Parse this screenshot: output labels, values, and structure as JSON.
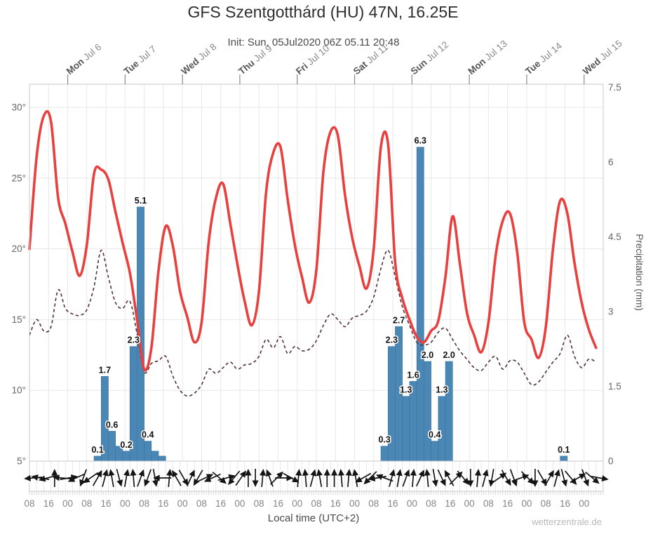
{
  "header": {
    "title": "GFS Szentgotthárd (HU) 47N, 16.25E",
    "subtitle": "Init: Sun, 05Jul2020 06Z 05.11 20:48",
    "watermark": "wetterzentrale.de"
  },
  "axes": {
    "left": {
      "tick_labels": [
        "30°",
        "25°",
        "20°",
        "15°",
        "10°",
        "5°"
      ],
      "tick_values": [
        30,
        25,
        20,
        15,
        10,
        5
      ]
    },
    "right": {
      "label": "Precipitation (mm)",
      "tick_labels": [
        "7.5",
        "6",
        "4.5",
        "3",
        "1.5",
        "0"
      ],
      "tick_values": [
        7.5,
        6,
        4.5,
        3,
        1.5,
        0
      ]
    },
    "bottom": {
      "label": "Local time (UTC+2)",
      "hour_labels": [
        "08",
        "16",
        "00",
        "08",
        "16",
        "00",
        "08",
        "16",
        "00",
        "08",
        "16",
        "00",
        "08",
        "16",
        "00",
        "08",
        "16",
        "00",
        "08",
        "16",
        "00",
        "08",
        "16",
        "00",
        "08",
        "16",
        "00",
        "08",
        "16",
        "00"
      ],
      "hour_label_step_hours": 8
    },
    "top_days": [
      {
        "weekday": "Mon",
        "date": "Jul 6"
      },
      {
        "weekday": "Tue",
        "date": "Jul 7"
      },
      {
        "weekday": "Wed",
        "date": "Jul 8"
      },
      {
        "weekday": "Thu",
        "date": "Jul 9"
      },
      {
        "weekday": "Fri",
        "date": "Jul 10"
      },
      {
        "weekday": "Sat",
        "date": "Jul 11"
      },
      {
        "weekday": "Sun",
        "date": "Jul 12"
      },
      {
        "weekday": "Mon",
        "date": "Jul 13"
      },
      {
        "weekday": "Tue",
        "date": "Jul 14"
      },
      {
        "weekday": "Wed",
        "date": "Jul 15"
      }
    ]
  },
  "chart_data": {
    "type": "line+bar",
    "title": "GFS Szentgotthárd (HU) 47N, 16.25E",
    "x_unit": "hours since Sun 05 Jul 2020 08:00 local time (UTC+2)",
    "x_range_hours": [
      0,
      240
    ],
    "x_step_hours": 3,
    "first_day_tick_hour": 16,
    "day_tick_spacing_hours": 24,
    "temp_axis": {
      "ticks": [
        5,
        10,
        15,
        20,
        25,
        30
      ],
      "unit": "°C",
      "min": 5,
      "max": 31.6
    },
    "precip_axis": {
      "ticks": [
        0,
        1.5,
        3,
        4.5,
        6,
        7.5
      ],
      "unit": "mm",
      "min": 0,
      "max": 7.5
    },
    "grid": true,
    "legend": "none",
    "series": [
      {
        "name": "temperature_2m",
        "style": "solid",
        "color": "#e8403e",
        "width": 3.6,
        "values": [
          20.0,
          26.5,
          29.4,
          29.0,
          23.6,
          21.8,
          19.8,
          18.1,
          20.3,
          25.3,
          25.6,
          24.9,
          22.6,
          20.4,
          18.3,
          15.0,
          11.5,
          13.0,
          18.5,
          21.6,
          20.2,
          17.0,
          15.2,
          13.4,
          14.8,
          20.5,
          23.6,
          24.6,
          21.8,
          18.9,
          16.3,
          14.6,
          17.0,
          24.0,
          26.8,
          27.2,
          23.5,
          20.3,
          18.0,
          16.2,
          18.5,
          25.5,
          28.3,
          28.0,
          23.8,
          20.8,
          18.8,
          17.2,
          20.0,
          27.2,
          27.4,
          19.0,
          16.5,
          15.0,
          13.8,
          13.4,
          14.2,
          14.9,
          18.0,
          22.3,
          19.0,
          15.5,
          13.9,
          12.7,
          14.8,
          19.5,
          22.0,
          22.5,
          19.8,
          14.8,
          13.6,
          12.3,
          14.5,
          20.0,
          23.4,
          22.5,
          19.0,
          16.2,
          14.3,
          13.0
        ]
      },
      {
        "name": "dewpoint_2m",
        "style": "dashed",
        "color": "#533138",
        "width": 1.6,
        "values": [
          13.9,
          15.0,
          14.2,
          14.5,
          17.1,
          15.8,
          15.4,
          15.3,
          15.7,
          17.3,
          19.9,
          18.0,
          16.2,
          15.8,
          16.3,
          14.0,
          11.3,
          11.9,
          12.1,
          12.4,
          11.0,
          10.0,
          9.6,
          9.8,
          10.4,
          11.5,
          11.2,
          11.6,
          12.0,
          11.5,
          11.8,
          11.9,
          12.4,
          13.6,
          13.0,
          13.8,
          12.6,
          13.1,
          12.8,
          12.9,
          13.5,
          14.6,
          15.4,
          15.0,
          14.5,
          15.1,
          15.3,
          15.6,
          16.6,
          18.6,
          19.9,
          18.0,
          15.9,
          14.6,
          13.4,
          13.2,
          13.4,
          14.1,
          14.4,
          13.6,
          12.8,
          12.2,
          11.6,
          11.4,
          12.0,
          12.4,
          11.5,
          12.1,
          12.0,
          11.2,
          10.4,
          10.6,
          11.3,
          12.0,
          12.6,
          13.9,
          12.4,
          11.6,
          12.2,
          12.0
        ]
      }
    ],
    "precipitation_bars": [
      {
        "start_hour": 27,
        "mm": 0.1,
        "label": "0.1"
      },
      {
        "start_hour": 30,
        "mm": 1.7,
        "label": "1.7"
      },
      {
        "start_hour": 33,
        "mm": 0.6,
        "label": "0.6"
      },
      {
        "start_hour": 36,
        "mm": 0.3,
        "label": null
      },
      {
        "start_hour": 39,
        "mm": 0.2,
        "label": "0.2"
      },
      {
        "start_hour": 42,
        "mm": 2.3,
        "label": "2.3"
      },
      {
        "start_hour": 45,
        "mm": 5.1,
        "label": "5.1"
      },
      {
        "start_hour": 48,
        "mm": 0.4,
        "label": "0.4"
      },
      {
        "start_hour": 51,
        "mm": 0.2,
        "label": null
      },
      {
        "start_hour": 54,
        "mm": 0.1,
        "label": null
      },
      {
        "start_hour": 147,
        "mm": 0.3,
        "label": "0.3"
      },
      {
        "start_hour": 150,
        "mm": 2.3,
        "label": "2.3"
      },
      {
        "start_hour": 153,
        "mm": 2.7,
        "label": "2.7"
      },
      {
        "start_hour": 156,
        "mm": 1.3,
        "label": "1.3"
      },
      {
        "start_hour": 159,
        "mm": 1.6,
        "label": "1.6"
      },
      {
        "start_hour": 162,
        "mm": 6.3,
        "label": "6.3"
      },
      {
        "start_hour": 165,
        "mm": 2.0,
        "label": "2.0"
      },
      {
        "start_hour": 168,
        "mm": 0.4,
        "label": "0.4"
      },
      {
        "start_hour": 171,
        "mm": 1.3,
        "label": "1.3"
      },
      {
        "start_hour": 174,
        "mm": 2.0,
        "label": "2.0"
      },
      {
        "start_hour": 222,
        "mm": 0.1,
        "label": "0.1"
      }
    ],
    "wind_arrow_angles_deg": [
      185,
      170,
      195,
      90,
      175,
      10,
      205,
      250,
      215,
      60,
      75,
      100,
      285,
      80,
      95,
      70,
      250,
      280,
      180,
      85,
      120,
      300,
      65,
      240,
      25,
      205,
      320,
      15,
      230,
      55,
      90,
      270,
      85,
      110,
      45,
      0,
      330,
      85,
      95,
      75,
      100,
      90,
      90,
      95,
      85,
      100,
      210,
      225,
      190,
      160,
      75,
      80,
      70,
      85,
      65,
      95,
      280,
      295,
      120,
      45,
      310,
      270,
      85,
      75,
      260,
      35,
      300,
      290,
      20,
      315,
      270,
      300,
      60,
      75,
      285,
      310,
      30,
      290,
      320,
      350
    ],
    "colors": {
      "temperature": "#e8403e",
      "dewpoint": "#533138",
      "precip_bar": "#4a87b5",
      "precip_bar_border": "#3a74a3",
      "bar_label_text": "#111111",
      "grid": "#e7e7e7",
      "plot_border": "#c9c9c9",
      "axis_text": "#666666",
      "hour_label_text": "#858585",
      "day_label_bold": "#555555",
      "day_label_light": "#888888",
      "wind_arrow": "#151515",
      "day_tick": "#888888"
    }
  }
}
